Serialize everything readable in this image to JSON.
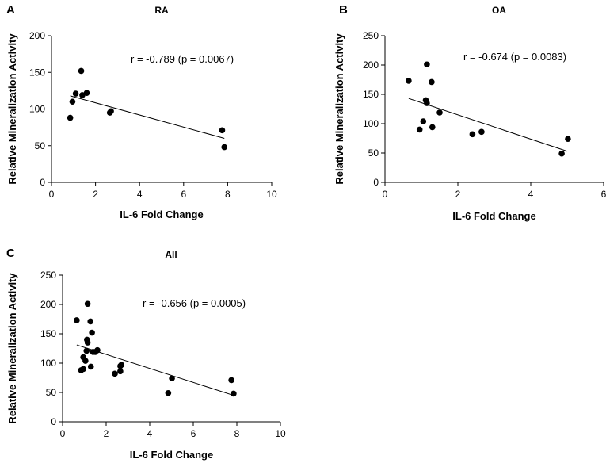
{
  "figure": {
    "panels": [
      "A",
      "B",
      "C"
    ]
  },
  "chart_data": [
    {
      "type": "scatter",
      "panel": "A",
      "title": "RA",
      "xlabel": "IL-6 Fold Change",
      "ylabel": "Relative Mineralization Activity",
      "xlim": [
        0,
        10
      ],
      "ylim": [
        0,
        200
      ],
      "xticks": [
        0,
        2,
        4,
        6,
        8,
        10
      ],
      "yticks": [
        0,
        50,
        100,
        150,
        200
      ],
      "annotation": "r = -0.789 (p = 0.0067)",
      "points": [
        {
          "x": 0.85,
          "y": 88
        },
        {
          "x": 0.95,
          "y": 110
        },
        {
          "x": 1.1,
          "y": 121
        },
        {
          "x": 1.35,
          "y": 152
        },
        {
          "x": 1.4,
          "y": 119
        },
        {
          "x": 1.6,
          "y": 122
        },
        {
          "x": 2.65,
          "y": 95
        },
        {
          "x": 2.7,
          "y": 97
        },
        {
          "x": 7.75,
          "y": 71
        },
        {
          "x": 7.85,
          "y": 48
        }
      ],
      "fit_line": {
        "x": [
          0.85,
          7.85
        ],
        "y": [
          118,
          60
        ]
      }
    },
    {
      "type": "scatter",
      "panel": "B",
      "title": "OA",
      "xlabel": "IL-6 Fold Change",
      "ylabel": "Relative Mineralization Activity",
      "xlim": [
        0,
        6
      ],
      "ylim": [
        0,
        250
      ],
      "xticks": [
        0,
        2,
        4,
        6
      ],
      "yticks": [
        0,
        50,
        100,
        150,
        200,
        250
      ],
      "annotation": "r = -0.674 (p = 0.0083)",
      "points": [
        {
          "x": 0.65,
          "y": 173
        },
        {
          "x": 0.95,
          "y": 90
        },
        {
          "x": 1.05,
          "y": 104
        },
        {
          "x": 1.12,
          "y": 140
        },
        {
          "x": 1.15,
          "y": 135
        },
        {
          "x": 1.15,
          "y": 201
        },
        {
          "x": 1.28,
          "y": 171
        },
        {
          "x": 1.3,
          "y": 94
        },
        {
          "x": 1.5,
          "y": 119
        },
        {
          "x": 2.4,
          "y": 82
        },
        {
          "x": 2.65,
          "y": 86
        },
        {
          "x": 4.85,
          "y": 49
        },
        {
          "x": 5.02,
          "y": 74
        }
      ],
      "fit_line": {
        "x": [
          0.65,
          5.0
        ],
        "y": [
          143,
          53
        ]
      }
    },
    {
      "type": "scatter",
      "panel": "C",
      "title": "All",
      "xlabel": "IL-6 Fold Change",
      "ylabel": "Relative Mineralization Activity",
      "xlim": [
        0,
        10
      ],
      "ylim": [
        0,
        250
      ],
      "xticks": [
        0,
        2,
        4,
        6,
        8,
        10
      ],
      "yticks": [
        0,
        50,
        100,
        150,
        200,
        250
      ],
      "annotation": "r = -0.656 (p = 0.0005)",
      "points": [
        {
          "x": 0.65,
          "y": 173
        },
        {
          "x": 0.85,
          "y": 88
        },
        {
          "x": 0.95,
          "y": 90
        },
        {
          "x": 0.95,
          "y": 110
        },
        {
          "x": 1.05,
          "y": 104
        },
        {
          "x": 1.1,
          "y": 121
        },
        {
          "x": 1.12,
          "y": 140
        },
        {
          "x": 1.15,
          "y": 135
        },
        {
          "x": 1.15,
          "y": 201
        },
        {
          "x": 1.28,
          "y": 171
        },
        {
          "x": 1.3,
          "y": 94
        },
        {
          "x": 1.35,
          "y": 152
        },
        {
          "x": 1.4,
          "y": 119
        },
        {
          "x": 1.5,
          "y": 119
        },
        {
          "x": 1.6,
          "y": 122
        },
        {
          "x": 2.4,
          "y": 82
        },
        {
          "x": 2.65,
          "y": 86
        },
        {
          "x": 2.65,
          "y": 95
        },
        {
          "x": 2.7,
          "y": 97
        },
        {
          "x": 4.85,
          "y": 49
        },
        {
          "x": 5.02,
          "y": 74
        },
        {
          "x": 7.75,
          "y": 71
        },
        {
          "x": 7.85,
          "y": 48
        }
      ],
      "fit_line": {
        "x": [
          0.65,
          7.85
        ],
        "y": [
          131,
          45
        ]
      }
    }
  ]
}
